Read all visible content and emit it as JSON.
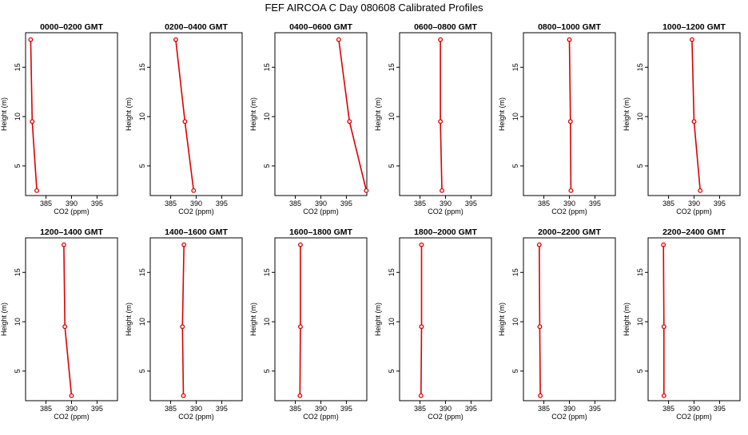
{
  "figure": {
    "title": "FEF AIRCOA C  Day 080608  Calibrated Profiles"
  },
  "colors": {
    "series": "#dd0000",
    "axis": "#000000",
    "background": "#ffffff"
  },
  "chart_data": [
    {
      "type": "line",
      "title": "0000–0200 GMT",
      "xlabel": "CO2 (ppm)",
      "ylabel": "Height (m)",
      "xlim": [
        381,
        399
      ],
      "ylim": [
        2,
        18.5
      ],
      "xticks": [
        385,
        390,
        395
      ],
      "yticks": [
        5,
        10,
        15
      ],
      "grid": false,
      "series": [
        {
          "points": [
            {
              "x": 382.0,
              "y": 17.8
            },
            {
              "x": 382.3,
              "y": 9.5
            },
            {
              "x": 383.2,
              "y": 2.5
            }
          ]
        }
      ]
    },
    {
      "type": "line",
      "title": "0200–0400 GMT",
      "xlabel": "CO2 (ppm)",
      "ylabel": "Height (m)",
      "xlim": [
        381,
        399
      ],
      "ylim": [
        2,
        18.5
      ],
      "xticks": [
        385,
        390,
        395
      ],
      "yticks": [
        5,
        10,
        15
      ],
      "grid": false,
      "series": [
        {
          "points": [
            {
              "x": 386.0,
              "y": 17.8
            },
            {
              "x": 387.8,
              "y": 9.5
            },
            {
              "x": 389.5,
              "y": 2.5
            }
          ]
        }
      ]
    },
    {
      "type": "line",
      "title": "0400–0600 GMT",
      "xlabel": "CO2 (ppm)",
      "ylabel": "Height (m)",
      "xlim": [
        381,
        399
      ],
      "ylim": [
        2,
        18.5
      ],
      "xticks": [
        385,
        390,
        395
      ],
      "yticks": [
        5,
        10,
        15
      ],
      "grid": false,
      "series": [
        {
          "points": [
            {
              "x": 393.5,
              "y": 17.8
            },
            {
              "x": 395.6,
              "y": 9.5
            },
            {
              "x": 398.9,
              "y": 2.5
            }
          ]
        }
      ]
    },
    {
      "type": "line",
      "title": "0600–0800 GMT",
      "xlabel": "CO2 (ppm)",
      "ylabel": "Height (m)",
      "xlim": [
        381,
        399
      ],
      "ylim": [
        2,
        18.5
      ],
      "xticks": [
        385,
        390,
        395
      ],
      "yticks": [
        5,
        10,
        15
      ],
      "grid": false,
      "series": [
        {
          "points": [
            {
              "x": 389.0,
              "y": 17.8
            },
            {
              "x": 389.0,
              "y": 9.5
            },
            {
              "x": 389.3,
              "y": 2.5
            }
          ]
        }
      ]
    },
    {
      "type": "line",
      "title": "0800–1000 GMT",
      "xlabel": "CO2 (ppm)",
      "ylabel": "Height (m)",
      "xlim": [
        381,
        399
      ],
      "ylim": [
        2,
        18.5
      ],
      "xticks": [
        385,
        390,
        395
      ],
      "yticks": [
        5,
        10,
        15
      ],
      "grid": false,
      "series": [
        {
          "points": [
            {
              "x": 390.0,
              "y": 17.8
            },
            {
              "x": 390.2,
              "y": 9.5
            },
            {
              "x": 390.3,
              "y": 2.5
            }
          ]
        }
      ]
    },
    {
      "type": "line",
      "title": "1000–1200 GMT",
      "xlabel": "CO2 (ppm)",
      "ylabel": "Height (m)",
      "xlim": [
        381,
        399
      ],
      "ylim": [
        2,
        18.5
      ],
      "xticks": [
        385,
        390,
        395
      ],
      "yticks": [
        5,
        10,
        15
      ],
      "grid": false,
      "series": [
        {
          "points": [
            {
              "x": 389.6,
              "y": 17.8
            },
            {
              "x": 390.0,
              "y": 9.5
            },
            {
              "x": 391.2,
              "y": 2.5
            }
          ]
        }
      ]
    },
    {
      "type": "line",
      "title": "1200–1400 GMT",
      "xlabel": "CO2 (ppm)",
      "ylabel": "Height (m)",
      "xlim": [
        381,
        399
      ],
      "ylim": [
        2,
        18.5
      ],
      "xticks": [
        385,
        390,
        395
      ],
      "yticks": [
        5,
        10,
        15
      ],
      "grid": false,
      "series": [
        {
          "points": [
            {
              "x": 388.5,
              "y": 17.8
            },
            {
              "x": 388.7,
              "y": 9.5
            },
            {
              "x": 390.0,
              "y": 2.5
            }
          ]
        }
      ]
    },
    {
      "type": "line",
      "title": "1400–1600 GMT",
      "xlabel": "CO2 (ppm)",
      "ylabel": "Height (m)",
      "xlim": [
        381,
        399
      ],
      "ylim": [
        2,
        18.5
      ],
      "xticks": [
        385,
        390,
        395
      ],
      "yticks": [
        5,
        10,
        15
      ],
      "grid": false,
      "series": [
        {
          "points": [
            {
              "x": 387.6,
              "y": 17.8
            },
            {
              "x": 387.3,
              "y": 9.5
            },
            {
              "x": 387.5,
              "y": 2.5
            }
          ]
        }
      ]
    },
    {
      "type": "line",
      "title": "1600–1800 GMT",
      "xlabel": "CO2 (ppm)",
      "ylabel": "Height (m)",
      "xlim": [
        381,
        399
      ],
      "ylim": [
        2,
        18.5
      ],
      "xticks": [
        385,
        390,
        395
      ],
      "yticks": [
        5,
        10,
        15
      ],
      "grid": false,
      "series": [
        {
          "points": [
            {
              "x": 386.0,
              "y": 17.8
            },
            {
              "x": 386.0,
              "y": 9.5
            },
            {
              "x": 385.9,
              "y": 2.5
            }
          ]
        }
      ]
    },
    {
      "type": "line",
      "title": "1800–2000 GMT",
      "xlabel": "CO2 (ppm)",
      "ylabel": "Height (m)",
      "xlim": [
        381,
        399
      ],
      "ylim": [
        2,
        18.5
      ],
      "xticks": [
        385,
        390,
        395
      ],
      "yticks": [
        5,
        10,
        15
      ],
      "grid": false,
      "series": [
        {
          "points": [
            {
              "x": 385.3,
              "y": 17.8
            },
            {
              "x": 385.3,
              "y": 9.5
            },
            {
              "x": 385.2,
              "y": 2.5
            }
          ]
        }
      ]
    },
    {
      "type": "line",
      "title": "2000–2200 GMT",
      "xlabel": "CO2 (ppm)",
      "ylabel": "Height (m)",
      "xlim": [
        381,
        399
      ],
      "ylim": [
        2,
        18.5
      ],
      "xticks": [
        385,
        390,
        395
      ],
      "yticks": [
        5,
        10,
        15
      ],
      "grid": false,
      "series": [
        {
          "points": [
            {
              "x": 384.1,
              "y": 17.8
            },
            {
              "x": 384.2,
              "y": 9.5
            },
            {
              "x": 384.3,
              "y": 2.5
            }
          ]
        }
      ]
    },
    {
      "type": "line",
      "title": "2200–2400 GMT",
      "xlabel": "CO2 (ppm)",
      "ylabel": "Height (m)",
      "xlim": [
        381,
        399
      ],
      "ylim": [
        2,
        18.5
      ],
      "xticks": [
        385,
        390,
        395
      ],
      "yticks": [
        5,
        10,
        15
      ],
      "grid": false,
      "series": [
        {
          "points": [
            {
              "x": 384.0,
              "y": 17.8
            },
            {
              "x": 384.1,
              "y": 9.5
            },
            {
              "x": 384.1,
              "y": 2.5
            }
          ]
        }
      ]
    }
  ]
}
